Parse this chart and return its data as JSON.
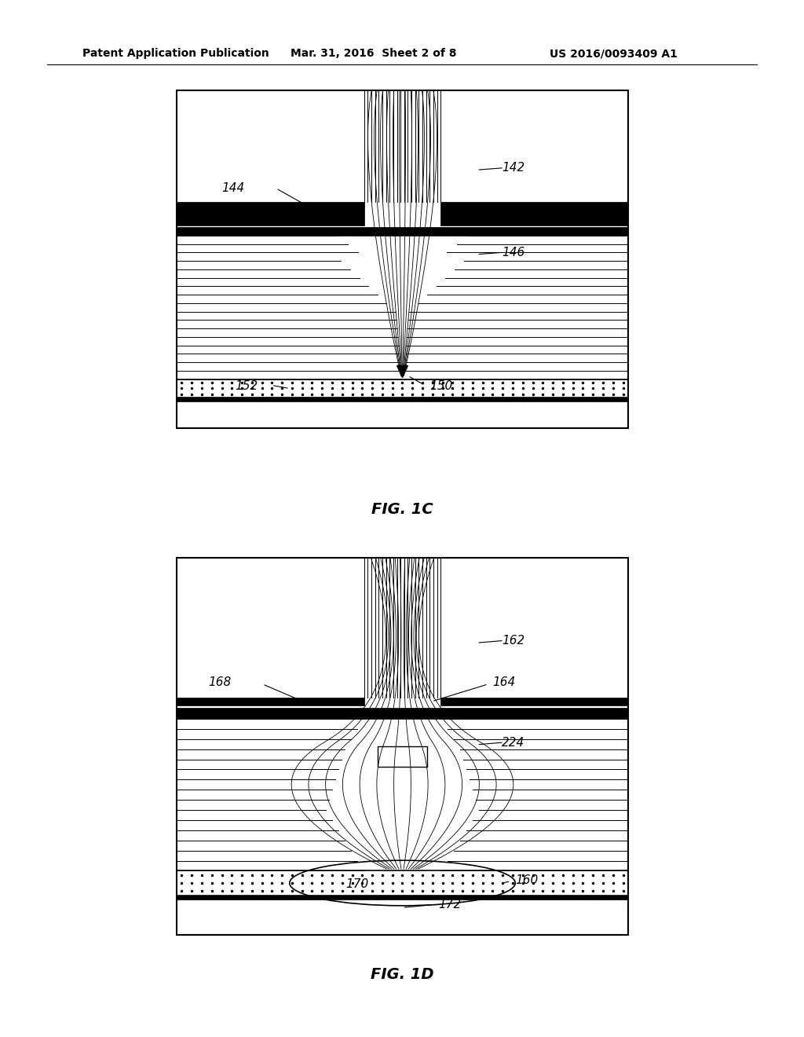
{
  "bg_color": "#ffffff",
  "header_text": "Patent Application Publication",
  "header_date": "Mar. 31, 2016  Sheet 2 of 8",
  "header_patent": "US 2016/0093409 A1",
  "fig1c_label": "FIG. 1C",
  "fig1d_label": "FIG. 1D",
  "label_142": "142",
  "label_144": "144",
  "label_146": "146",
  "label_150": "150",
  "label_152": "152",
  "label_162": "162",
  "label_164": "164",
  "label_168": "168",
  "label_224": "224",
  "label_160": "160",
  "label_170": "170",
  "label_172": "172"
}
